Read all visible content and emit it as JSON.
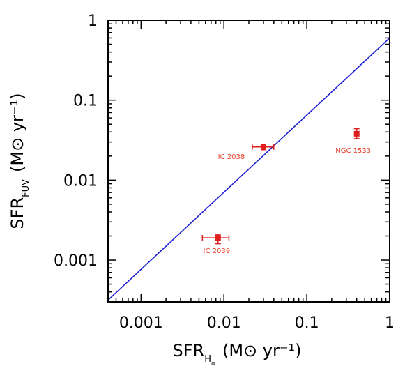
{
  "chart_data": {
    "type": "scatter",
    "xlabel": {
      "main": "SFR",
      "sub": "H",
      "subsub": "α",
      "units": "(M⊙ yr⁻¹)"
    },
    "ylabel": {
      "main": "SFR",
      "sub": "FUV",
      "units": "(M⊙ yr⁻¹)"
    },
    "xscale": "log",
    "yscale": "log",
    "xlim": [
      0.0004,
      1
    ],
    "ylim": [
      0.0003,
      1
    ],
    "xticks": [
      {
        "value": 0.001,
        "label": "0.001"
      },
      {
        "value": 0.01,
        "label": "0.01"
      },
      {
        "value": 0.1,
        "label": "0.1"
      },
      {
        "value": 1,
        "label": "1"
      }
    ],
    "yticks": [
      {
        "value": 0.001,
        "label": "0.001"
      },
      {
        "value": 0.01,
        "label": "0.01"
      },
      {
        "value": 0.1,
        "label": "0.1"
      },
      {
        "value": 1,
        "label": "1"
      }
    ],
    "points": [
      {
        "name": "IC 2039",
        "x": 0.0085,
        "y": 0.0019,
        "xerr": [
          0.0055,
          0.0115
        ],
        "yerr": [
          0.0016,
          0.0021
        ]
      },
      {
        "name": "IC 2038",
        "x": 0.03,
        "y": 0.026,
        "xerr": [
          0.022,
          0.04
        ],
        "yerr": [
          0.024,
          0.028
        ]
      },
      {
        "name": "NGC 1533",
        "x": 0.4,
        "y": 0.038,
        "xerr": [
          0.4,
          0.4
        ],
        "yerr": [
          0.033,
          0.044
        ]
      }
    ],
    "fit_line": {
      "x": [
        0.0004,
        1.0
      ],
      "y": [
        0.000316,
        0.6
      ],
      "color": "#1f1fd6"
    },
    "point_color": "#e01e1e",
    "label_color": "#e8402a",
    "grid": false
  }
}
